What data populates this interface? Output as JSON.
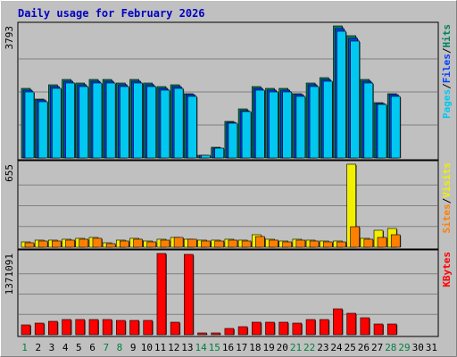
{
  "title": "Daily usage for February 2026",
  "colors": {
    "hits": "#00805c",
    "files": "#0040ff",
    "pages": "#00c8f0",
    "visits": "#f0f000",
    "sites": "#ff8000",
    "kbytes": "#ff0000",
    "title": "#0000c0",
    "weekday_label": "#000000",
    "weekend_label": "#008040"
  },
  "chart_data": [
    {
      "type": "bar",
      "panel": "hits-files-pages",
      "ymax_label": "3793",
      "legend": [
        {
          "text": "Hits",
          "color_key": "hits"
        },
        {
          "text": "/",
          "color_key": null
        },
        {
          "text": "Files",
          "color_key": "files"
        },
        {
          "text": "/",
          "color_key": null
        },
        {
          "text": "Pages",
          "color_key": "pages"
        }
      ],
      "ymax": 3793,
      "days": [
        1,
        2,
        3,
        4,
        5,
        6,
        7,
        8,
        9,
        10,
        11,
        12,
        13,
        14,
        15,
        16,
        17,
        18,
        19,
        20,
        21,
        22,
        23,
        24,
        25,
        26,
        27,
        28
      ],
      "series": [
        {
          "name": "Hits",
          "color_key": "hits",
          "values": [
            2000,
            1700,
            2100,
            2250,
            2150,
            2250,
            2250,
            2150,
            2250,
            2150,
            2050,
            2100,
            1850,
            80,
            300,
            1050,
            1400,
            2050,
            2000,
            2000,
            1850,
            2150,
            2300,
            3793,
            3500,
            2250,
            1600,
            1850
          ]
        },
        {
          "name": "Files",
          "color_key": "files",
          "values": [
            1960,
            1660,
            2060,
            2210,
            2110,
            2210,
            2210,
            2110,
            2210,
            2110,
            2010,
            2060,
            1810,
            78,
            290,
            1030,
            1370,
            2010,
            1960,
            1960,
            1810,
            2110,
            2260,
            3720,
            3430,
            2210,
            1570,
            1810
          ]
        },
        {
          "name": "Pages",
          "color_key": "pages",
          "values": [
            1900,
            1620,
            2000,
            2150,
            2050,
            2150,
            2150,
            2050,
            2150,
            2050,
            1950,
            2000,
            1770,
            70,
            280,
            1000,
            1340,
            1950,
            1900,
            1900,
            1770,
            2050,
            2200,
            3650,
            3360,
            2150,
            1530,
            1770
          ]
        }
      ]
    },
    {
      "type": "bar",
      "panel": "visits-sites",
      "ymax_label": "655",
      "legend": [
        {
          "text": "Visits",
          "color_key": "visits"
        },
        {
          "text": "/",
          "color_key": null
        },
        {
          "text": "Sites",
          "color_key": "sites"
        }
      ],
      "ymax": 655,
      "days": [
        1,
        2,
        3,
        4,
        5,
        6,
        7,
        8,
        9,
        10,
        11,
        12,
        13,
        14,
        15,
        16,
        17,
        18,
        19,
        20,
        21,
        22,
        23,
        24,
        25,
        26,
        27,
        28
      ],
      "series": [
        {
          "name": "Visits",
          "color_key": "visits",
          "values": [
            40,
            55,
            55,
            60,
            70,
            75,
            35,
            55,
            70,
            50,
            60,
            80,
            65,
            55,
            55,
            60,
            55,
            100,
            60,
            50,
            60,
            55,
            50,
            50,
            655,
            70,
            135,
            150
          ]
        },
        {
          "name": "Sites",
          "color_key": "sites",
          "values": [
            35,
            50,
            50,
            55,
            65,
            70,
            30,
            50,
            65,
            45,
            55,
            75,
            60,
            50,
            50,
            55,
            50,
            85,
            55,
            45,
            55,
            50,
            45,
            45,
            160,
            65,
            75,
            100
          ]
        }
      ]
    },
    {
      "type": "bar",
      "panel": "kbytes",
      "ymax_label": "1371091",
      "legend": [
        {
          "text": "KBytes",
          "color_key": "kbytes"
        }
      ],
      "ymax": 1371091,
      "days": [
        1,
        2,
        3,
        4,
        5,
        6,
        7,
        8,
        9,
        10,
        11,
        12,
        13,
        14,
        15,
        16,
        17,
        18,
        19,
        20,
        21,
        22,
        23,
        24,
        25,
        26,
        27,
        28
      ],
      "series": [
        {
          "name": "KBytes",
          "color_key": "kbytes",
          "values": [
            170000,
            190000,
            220000,
            250000,
            250000,
            260000,
            250000,
            240000,
            240000,
            240000,
            1371091,
            210000,
            1350000,
            25000,
            30000,
            100000,
            130000,
            210000,
            210000,
            210000,
            190000,
            250000,
            260000,
            430000,
            360000,
            290000,
            180000,
            180000
          ]
        }
      ]
    }
  ],
  "x_axis": {
    "labels": [
      {
        "text": "1",
        "weekend": true
      },
      {
        "text": "2",
        "weekend": false
      },
      {
        "text": "3",
        "weekend": false
      },
      {
        "text": "4",
        "weekend": false
      },
      {
        "text": "5",
        "weekend": false
      },
      {
        "text": "6",
        "weekend": false
      },
      {
        "text": "7",
        "weekend": true
      },
      {
        "text": "8",
        "weekend": true
      },
      {
        "text": "9",
        "weekend": false
      },
      {
        "text": "10",
        "weekend": false
      },
      {
        "text": "11",
        "weekend": false
      },
      {
        "text": "12",
        "weekend": false
      },
      {
        "text": "13",
        "weekend": false
      },
      {
        "text": "14",
        "weekend": true
      },
      {
        "text": "15",
        "weekend": true
      },
      {
        "text": "16",
        "weekend": false
      },
      {
        "text": "17",
        "weekend": false
      },
      {
        "text": "18",
        "weekend": false
      },
      {
        "text": "19",
        "weekend": false
      },
      {
        "text": "20",
        "weekend": false
      },
      {
        "text": "21",
        "weekend": true
      },
      {
        "text": "22",
        "weekend": true
      },
      {
        "text": "23",
        "weekend": false
      },
      {
        "text": "24",
        "weekend": false
      },
      {
        "text": "25",
        "weekend": false
      },
      {
        "text": "26",
        "weekend": false
      },
      {
        "text": "27",
        "weekend": false
      },
      {
        "text": "28",
        "weekend": true
      },
      {
        "text": "29",
        "weekend": true
      },
      {
        "text": "30",
        "weekend": false
      },
      {
        "text": "31",
        "weekend": false
      }
    ]
  }
}
